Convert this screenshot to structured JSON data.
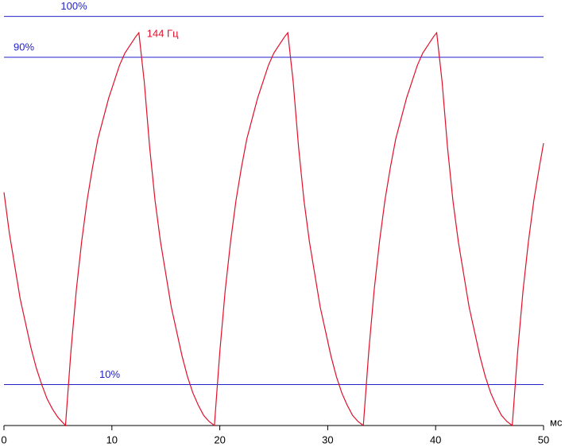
{
  "chart_data": {
    "type": "line",
    "x_unit": "мс",
    "xlim": [
      0,
      50
    ],
    "xticks": [
      0,
      10,
      20,
      30,
      40,
      50
    ],
    "ylim": [
      0,
      104
    ],
    "yticks": [
      {
        "value": 10,
        "label": "10%"
      },
      {
        "value": 90,
        "label": "90%"
      },
      {
        "value": 100,
        "label": "100%"
      }
    ],
    "grid": true,
    "grid_color": "#2222cc",
    "x": [
      0,
      0.5,
      1,
      1.5,
      2,
      2.5,
      3,
      3.5,
      4,
      4.5,
      5,
      5.7,
      6.2,
      6.7,
      7.2,
      7.7,
      8.2,
      8.7,
      9.2,
      9.7,
      10.2,
      10.7,
      11.2,
      11.7,
      12.2,
      12.5,
      13,
      13.5,
      14,
      14.5,
      15,
      15.5,
      16,
      16.5,
      17,
      17.5,
      18,
      18.5,
      19,
      19.5,
      20,
      20.5,
      21,
      21.5,
      22,
      22.5,
      23,
      23.5,
      24,
      24.5,
      25,
      25.5,
      26,
      26.3,
      26.8,
      27.3,
      27.8,
      28.3,
      28.8,
      29.3,
      29.8,
      30.3,
      30.8,
      31.3,
      31.8,
      32.3,
      32.8,
      33.3,
      33.8,
      34.3,
      34.8,
      35.3,
      35.8,
      36.3,
      36.8,
      37.3,
      37.8,
      38.3,
      38.8,
      39.3,
      39.8,
      40.1,
      40.6,
      41.1,
      41.6,
      42.1,
      42.6,
      43.1,
      43.6,
      44.1,
      44.6,
      45.1,
      45.6,
      46.1,
      46.6,
      47.1,
      47.6,
      48.1,
      48.6,
      49.1,
      49.6,
      50
    ],
    "series": [
      {
        "name": "144 Гц",
        "color": "#e0102a",
        "values": [
          57,
          47,
          39,
          31,
          25,
          19,
          14,
          10,
          6.5,
          4,
          2,
          0,
          18,
          33,
          45,
          55,
          63,
          70,
          75,
          80,
          84,
          88,
          91,
          93,
          95,
          96,
          84,
          68,
          55,
          45,
          37,
          29,
          23,
          17,
          12,
          8,
          5,
          2.5,
          1,
          0,
          18,
          33,
          45,
          55,
          63,
          70,
          75,
          80,
          84,
          88,
          91,
          93,
          95,
          96,
          84,
          68,
          55,
          45,
          37,
          29,
          23,
          17,
          12,
          8,
          5,
          2.5,
          1,
          0,
          18,
          33,
          45,
          55,
          63,
          70,
          75,
          80,
          84,
          88,
          91,
          93,
          95,
          96,
          84,
          68,
          55,
          45,
          37,
          29,
          23,
          17,
          12,
          8,
          5,
          2.5,
          1,
          0,
          18,
          33,
          45,
          55,
          63,
          69
        ]
      }
    ]
  }
}
